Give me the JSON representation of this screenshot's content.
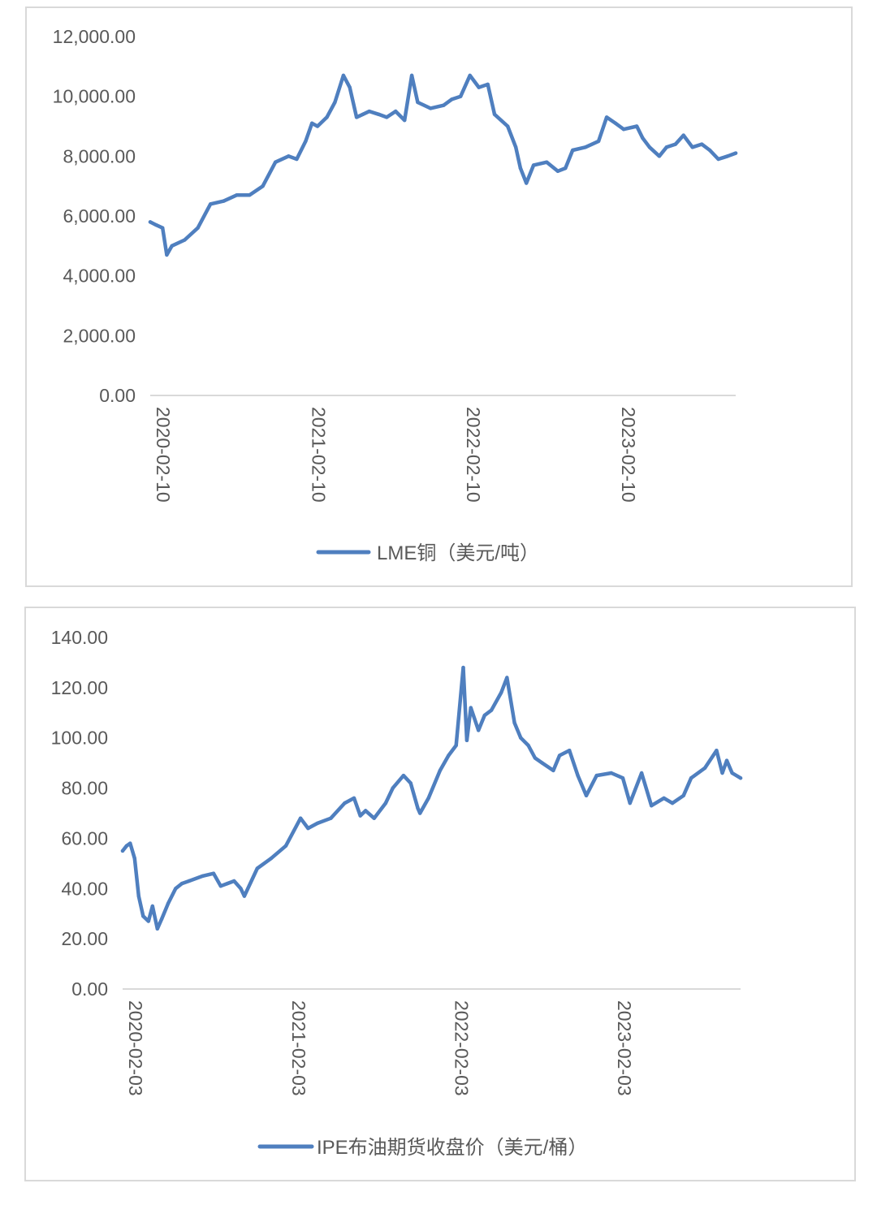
{
  "colors": {
    "series": "#4f7fbf",
    "axis": "#d9d9d9",
    "text": "#595959"
  },
  "chart_data": [
    {
      "type": "line",
      "title": "",
      "xlabel": "",
      "ylabel": "",
      "ylim": [
        0,
        12000
      ],
      "xlim": [
        "2020-02-10",
        "2023-11-20"
      ],
      "y_ticks": [
        "0.00",
        "2,000.00",
        "4,000.00",
        "6,000.00",
        "8,000.00",
        "10,000.00",
        "12,000.00"
      ],
      "x_ticks": [
        "2020-02-10",
        "2021-02-10",
        "2022-02-10",
        "2023-02-10"
      ],
      "grid": false,
      "legend_placement": "bottom",
      "series": [
        {
          "name": "LME铜（美元/吨）",
          "x": [
            "2020-02-10",
            "2020-02-24",
            "2020-03-10",
            "2020-03-20",
            "2020-04-01",
            "2020-05-01",
            "2020-06-01",
            "2020-07-01",
            "2020-08-01",
            "2020-09-01",
            "2020-10-01",
            "2020-11-01",
            "2020-12-01",
            "2021-01-01",
            "2021-01-20",
            "2021-02-10",
            "2021-02-25",
            "2021-03-10",
            "2021-04-01",
            "2021-04-20",
            "2021-05-10",
            "2021-05-25",
            "2021-06-10",
            "2021-06-25",
            "2021-07-10",
            "2021-08-01",
            "2021-08-20",
            "2021-09-10",
            "2021-10-01",
            "2021-10-18",
            "2021-11-01",
            "2021-12-01",
            "2022-01-01",
            "2022-01-20",
            "2022-02-10",
            "2022-03-04",
            "2022-03-25",
            "2022-04-15",
            "2022-05-01",
            "2022-06-01",
            "2022-06-20",
            "2022-07-01",
            "2022-07-15",
            "2022-08-01",
            "2022-09-01",
            "2022-09-27",
            "2022-10-15",
            "2022-11-01",
            "2022-12-01",
            "2023-01-01",
            "2023-01-20",
            "2023-02-10",
            "2023-03-01",
            "2023-04-01",
            "2023-04-15",
            "2023-05-01",
            "2023-05-24",
            "2023-06-10",
            "2023-07-01",
            "2023-07-20",
            "2023-08-10",
            "2023-09-01",
            "2023-09-20",
            "2023-10-10",
            "2023-11-01",
            "2023-11-20"
          ],
          "values": [
            5800,
            5700,
            5600,
            4700,
            5000,
            5200,
            5600,
            6400,
            6500,
            6700,
            6700,
            7000,
            7800,
            8000,
            7900,
            8500,
            9100,
            9000,
            9300,
            9800,
            10700,
            10300,
            9300,
            9400,
            9500,
            9400,
            9300,
            9500,
            9200,
            10700,
            9800,
            9600,
            9700,
            9900,
            10000,
            10700,
            10300,
            10400,
            9400,
            9000,
            8300,
            7600,
            7100,
            7700,
            7800,
            7500,
            7600,
            8200,
            8300,
            8500,
            9300,
            9100,
            8900,
            9000,
            8600,
            8300,
            8000,
            8300,
            8400,
            8700,
            8300,
            8400,
            8200,
            7900,
            8000,
            8100
          ]
        }
      ]
    },
    {
      "type": "line",
      "title": "",
      "xlabel": "",
      "ylabel": "",
      "ylim": [
        0,
        140
      ],
      "xlim": [
        "2020-02-03",
        "2023-11-20"
      ],
      "y_ticks": [
        "0.00",
        "20.00",
        "40.00",
        "60.00",
        "80.00",
        "100.00",
        "120.00",
        "140.00"
      ],
      "x_ticks": [
        "2020-02-03",
        "2021-02-03",
        "2022-02-03",
        "2023-02-03"
      ],
      "grid": false,
      "legend_placement": "bottom",
      "series": [
        {
          "name": "IPE布油期货收盘价（美元/桶）",
          "x": [
            "2020-02-03",
            "2020-02-12",
            "2020-02-20",
            "2020-03-01",
            "2020-03-10",
            "2020-03-20",
            "2020-04-01",
            "2020-04-10",
            "2020-04-21",
            "2020-05-01",
            "2020-05-15",
            "2020-06-01",
            "2020-06-15",
            "2020-07-01",
            "2020-08-01",
            "2020-08-25",
            "2020-09-10",
            "2020-09-25",
            "2020-10-10",
            "2020-10-25",
            "2020-11-02",
            "2020-12-01",
            "2021-01-01",
            "2021-02-03",
            "2021-03-08",
            "2021-03-25",
            "2021-04-15",
            "2021-05-15",
            "2021-06-15",
            "2021-07-06",
            "2021-07-20",
            "2021-08-01",
            "2021-08-20",
            "2021-09-15",
            "2021-10-01",
            "2021-10-25",
            "2021-11-10",
            "2021-11-26",
            "2021-12-01",
            "2021-12-20",
            "2022-01-15",
            "2022-02-03",
            "2022-02-20",
            "2022-03-08",
            "2022-03-16",
            "2022-03-25",
            "2022-04-11",
            "2022-04-25",
            "2022-05-10",
            "2022-06-01",
            "2022-06-14",
            "2022-07-01",
            "2022-07-15",
            "2022-08-01",
            "2022-08-16",
            "2022-09-01",
            "2022-09-26",
            "2022-10-10",
            "2022-11-01",
            "2022-11-20",
            "2022-12-09",
            "2023-01-01",
            "2023-02-03",
            "2023-03-01",
            "2023-03-17",
            "2023-04-12",
            "2023-05-04",
            "2023-06-01",
            "2023-06-20",
            "2023-07-15",
            "2023-08-01",
            "2023-09-01",
            "2023-09-27",
            "2023-10-10",
            "2023-10-20",
            "2023-11-01",
            "2023-11-20"
          ],
          "values": [
            55,
            57,
            58,
            52,
            37,
            29,
            27,
            33,
            24,
            28,
            34,
            40,
            42,
            43,
            45,
            46,
            41,
            42,
            43,
            40,
            37,
            48,
            52,
            57,
            68,
            64,
            66,
            68,
            74,
            76,
            69,
            71,
            68,
            74,
            80,
            85,
            82,
            72,
            70,
            76,
            87,
            93,
            97,
            128,
            99,
            112,
            103,
            109,
            111,
            118,
            124,
            106,
            100,
            97,
            92,
            90,
            87,
            93,
            95,
            85,
            77,
            85,
            86,
            84,
            74,
            86,
            73,
            76,
            74,
            77,
            84,
            88,
            95,
            86,
            91,
            86,
            84
          ]
        }
      ]
    }
  ]
}
